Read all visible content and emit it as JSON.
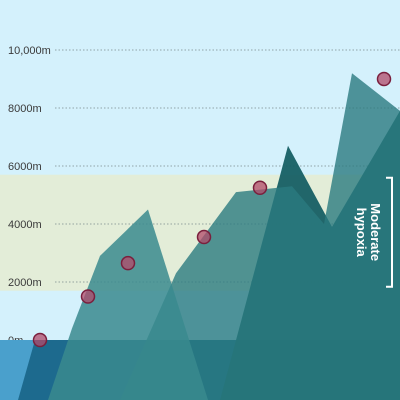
{
  "colors": {
    "sky": "#d4f1fc",
    "band": "#e3edd8",
    "sea": "#1d6a8e",
    "shallow": "#4aa0cc",
    "peak_light": "#3a8a8e",
    "peak_mid": "#2b7a80",
    "peak_dark": "#165f64",
    "marker_fill": "#b34a6a",
    "marker_stroke": "#7a1f3d",
    "grid": "#7a8a8a",
    "bracket": "#ffffff"
  },
  "chart_data": {
    "type": "area",
    "ylabel": "",
    "ylim": [
      -2300,
      12500
    ],
    "yticks": [
      {
        "value": 0,
        "label": "0m"
      },
      {
        "value": 2000,
        "label": "2000m"
      },
      {
        "value": 4000,
        "label": "4000m"
      },
      {
        "value": 6000,
        "label": "6000m"
      },
      {
        "value": 8000,
        "label": "8000m"
      },
      {
        "value": 10000,
        "label": "10,000m"
      }
    ],
    "grid": true,
    "band": {
      "label": "Moderate hypoxia",
      "from": 1700,
      "to": 5700
    },
    "markers": [
      {
        "x": 10,
        "y": 0
      },
      {
        "x": 22,
        "y": 1500
      },
      {
        "x": 32,
        "y": 2650
      },
      {
        "x": 51,
        "y": 3550
      },
      {
        "x": 65,
        "y": 5250
      },
      {
        "x": 96,
        "y": 9000
      }
    ],
    "mountains": [
      {
        "layer": "back",
        "points": [
          [
            55,
            -2300
          ],
          [
            72,
            6700
          ],
          [
            83,
            3900
          ],
          [
            100,
            7900
          ],
          [
            100,
            -2300
          ]
        ]
      },
      {
        "layer": "mid",
        "points": [
          [
            30,
            -2300
          ],
          [
            44,
            2300
          ],
          [
            59,
            5100
          ],
          [
            73,
            5300
          ],
          [
            81,
            4000
          ],
          [
            88,
            9200
          ],
          [
            100,
            7900
          ],
          [
            100,
            -2300
          ]
        ]
      },
      {
        "layer": "front",
        "points": [
          [
            12,
            -2300
          ],
          [
            18,
            400
          ],
          [
            25,
            2900
          ],
          [
            37,
            4500
          ],
          [
            52,
            -2300
          ]
        ]
      }
    ]
  }
}
